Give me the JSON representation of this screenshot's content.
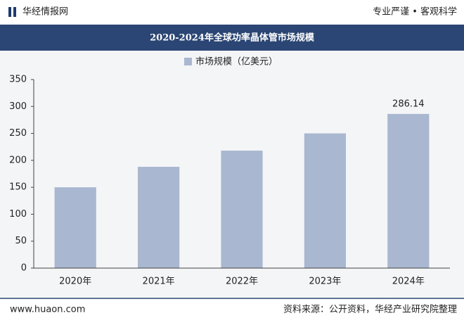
{
  "header": {
    "brand": "华经情报网",
    "slogan": "专业严谨 • 客观科学"
  },
  "chart_data": {
    "type": "bar",
    "title": "2020-2024年全球功率晶体管市场规模",
    "categories": [
      "2020年",
      "2021年",
      "2022年",
      "2023年",
      "2024年"
    ],
    "series": [
      {
        "name": "市场规模（亿美元）",
        "color": "#a9b7d0",
        "values": [
          150,
          188,
          218,
          250,
          286.14
        ]
      }
    ],
    "ylim": [
      0,
      350
    ],
    "yticks": [
      0,
      50,
      100,
      150,
      200,
      250,
      300,
      350
    ],
    "grid": false
  },
  "footer": {
    "site": "www.huaon.com",
    "source": "资料来源：公开资料，华经产业研究院整理"
  }
}
